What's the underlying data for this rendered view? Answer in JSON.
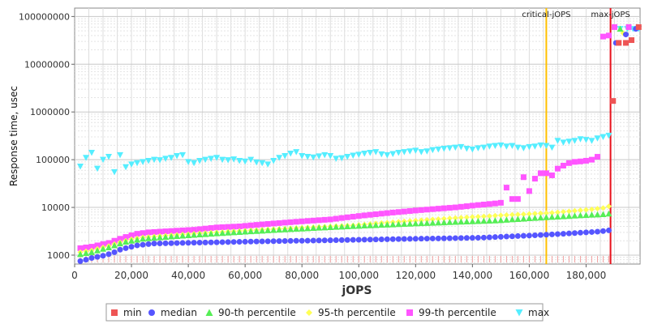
{
  "chart_data": {
    "type": "scatter",
    "xlabel": "jOPS",
    "ylabel": "Response time, usec",
    "xlim": [
      0,
      199000
    ],
    "ylog": true,
    "ylim": [
      650,
      150000000
    ],
    "grid": true,
    "legend_position": "bottom",
    "x_ticks": [
      0,
      20000,
      40000,
      60000,
      80000,
      100000,
      120000,
      140000,
      160000,
      180000
    ],
    "x_tick_labels": [
      "0",
      "20,000",
      "40,000",
      "60,000",
      "80,000",
      "100,000",
      "120,000",
      "140,000",
      "160,000",
      "180,000"
    ],
    "y_ticks": [
      1000,
      10000,
      100000,
      1000000,
      10000000,
      100000000
    ],
    "y_tick_labels": [
      "1000",
      "10000",
      "100000",
      "1000000",
      "10000000",
      "100000000"
    ],
    "markers": [
      {
        "label": "critical-jOPS",
        "x": 166000,
        "color": "#ffc000"
      },
      {
        "label": "max-jOPS",
        "x": 188600,
        "color": "#e8101a"
      }
    ],
    "series": [
      {
        "name": "min",
        "color": "#ee5555",
        "shape": "square",
        "x": [
          189500,
          191500,
          194000,
          196000,
          198500
        ],
        "y": [
          1700000,
          28000000,
          28000000,
          32000000,
          60000000
        ]
      },
      {
        "name": "median",
        "color": "#5555ff",
        "shape": "circle",
        "x": [
          2000,
          4000,
          6000,
          8000,
          10000,
          12000,
          14000,
          16000,
          18000,
          20000,
          22000,
          24000,
          26000,
          28000,
          30000,
          32000,
          34000,
          36000,
          38000,
          40000,
          42000,
          44000,
          46000,
          48000,
          50000,
          52000,
          54000,
          56000,
          58000,
          60000,
          62000,
          64000,
          66000,
          68000,
          70000,
          72000,
          74000,
          76000,
          78000,
          80000,
          82000,
          84000,
          86000,
          88000,
          90000,
          92000,
          94000,
          96000,
          98000,
          100000,
          102000,
          104000,
          106000,
          108000,
          110000,
          112000,
          114000,
          116000,
          118000,
          120000,
          122000,
          124000,
          126000,
          128000,
          130000,
          132000,
          134000,
          136000,
          138000,
          140000,
          142000,
          144000,
          146000,
          148000,
          150000,
          152000,
          154000,
          156000,
          158000,
          160000,
          162000,
          164000,
          166000,
          168000,
          170000,
          172000,
          174000,
          176000,
          178000,
          180000,
          182000,
          184000,
          186000,
          188000,
          190500,
          194000,
          197500
        ],
        "y": [
          750,
          800,
          870,
          920,
          970,
          1050,
          1150,
          1300,
          1400,
          1500,
          1600,
          1650,
          1700,
          1750,
          1760,
          1770,
          1780,
          1790,
          1800,
          1810,
          1820,
          1830,
          1840,
          1850,
          1860,
          1870,
          1880,
          1890,
          1900,
          1910,
          1920,
          1930,
          1940,
          1950,
          1960,
          1970,
          1980,
          1990,
          2000,
          2000,
          2010,
          2020,
          2030,
          2040,
          2050,
          2060,
          2070,
          2080,
          2090,
          2100,
          2110,
          2120,
          2130,
          2140,
          2150,
          2160,
          2170,
          2180,
          2190,
          2200,
          2210,
          2220,
          2230,
          2240,
          2250,
          2260,
          2270,
          2280,
          2290,
          2300,
          2310,
          2330,
          2360,
          2390,
          2420,
          2450,
          2480,
          2510,
          2540,
          2570,
          2600,
          2640,
          2680,
          2720,
          2760,
          2800,
          2850,
          2900,
          2950,
          3000,
          3050,
          3100,
          3200,
          3300,
          28000000,
          42000000,
          55000000
        ]
      },
      {
        "name": "90-th percentile",
        "color": "#55ee55",
        "shape": "triangle",
        "x": [
          2000,
          4000,
          6000,
          8000,
          10000,
          12000,
          14000,
          16000,
          18000,
          20000,
          22000,
          24000,
          26000,
          28000,
          30000,
          32000,
          34000,
          36000,
          38000,
          40000,
          42000,
          44000,
          46000,
          48000,
          50000,
          52000,
          54000,
          56000,
          58000,
          60000,
          62000,
          64000,
          66000,
          68000,
          70000,
          72000,
          74000,
          76000,
          78000,
          80000,
          82000,
          84000,
          86000,
          88000,
          90000,
          92000,
          94000,
          96000,
          98000,
          100000,
          102000,
          104000,
          106000,
          108000,
          110000,
          112000,
          114000,
          116000,
          118000,
          120000,
          122000,
          124000,
          126000,
          128000,
          130000,
          132000,
          134000,
          136000,
          138000,
          140000,
          142000,
          144000,
          146000,
          148000,
          150000,
          152000,
          154000,
          156000,
          158000,
          160000,
          162000,
          164000,
          166000,
          168000,
          170000,
          172000,
          174000,
          176000,
          178000,
          180000,
          182000,
          184000,
          186000,
          188000,
          192000
        ],
        "y": [
          1050,
          1100,
          1150,
          1250,
          1350,
          1450,
          1600,
          1750,
          1900,
          2000,
          2100,
          2200,
          2250,
          2300,
          2350,
          2400,
          2450,
          2500,
          2550,
          2600,
          2650,
          2700,
          2750,
          2800,
          2850,
          2900,
          2950,
          3000,
          3050,
          3100,
          3150,
          3200,
          3250,
          3300,
          3350,
          3400,
          3450,
          3500,
          3550,
          3600,
          3650,
          3700,
          3750,
          3800,
          3850,
          3900,
          3950,
          4000,
          4050,
          4100,
          4150,
          4200,
          4250,
          4300,
          4350,
          4400,
          4450,
          4500,
          4550,
          4600,
          4650,
          4700,
          4750,
          4800,
          4850,
          4900,
          4950,
          5000,
          5050,
          5100,
          5150,
          5200,
          5250,
          5300,
          5400,
          5500,
          5600,
          5700,
          5800,
          5900,
          6000,
          6100,
          6200,
          6300,
          6400,
          6500,
          6600,
          6700,
          6800,
          6900,
          7000,
          7100,
          7200,
          7400,
          55000000
        ]
      },
      {
        "name": "95-th percentile",
        "color": "#ffff55",
        "shape": "diamond",
        "x": [
          2000,
          4000,
          6000,
          8000,
          10000,
          12000,
          14000,
          16000,
          18000,
          20000,
          22000,
          24000,
          26000,
          28000,
          30000,
          32000,
          34000,
          36000,
          38000,
          40000,
          42000,
          44000,
          46000,
          48000,
          50000,
          52000,
          54000,
          56000,
          58000,
          60000,
          62000,
          64000,
          66000,
          68000,
          70000,
          72000,
          74000,
          76000,
          78000,
          80000,
          82000,
          84000,
          86000,
          88000,
          90000,
          92000,
          94000,
          96000,
          98000,
          100000,
          102000,
          104000,
          106000,
          108000,
          110000,
          112000,
          114000,
          116000,
          118000,
          120000,
          122000,
          124000,
          126000,
          128000,
          130000,
          132000,
          134000,
          136000,
          138000,
          140000,
          142000,
          144000,
          146000,
          148000,
          150000,
          152000,
          154000,
          156000,
          158000,
          160000,
          162000,
          164000,
          166000,
          168000,
          170000,
          172000,
          174000,
          176000,
          178000,
          180000,
          182000,
          184000,
          186000,
          188000,
          193000
        ],
        "y": [
          1150,
          1200,
          1250,
          1350,
          1450,
          1550,
          1700,
          1850,
          2000,
          2150,
          2250,
          2350,
          2400,
          2450,
          2500,
          2550,
          2600,
          2650,
          2700,
          2750,
          2800,
          2850,
          2900,
          2950,
          3000,
          3050,
          3100,
          3150,
          3200,
          3250,
          3300,
          3350,
          3400,
          3450,
          3500,
          3550,
          3600,
          3650,
          3700,
          3750,
          3800,
          3850,
          3900,
          3950,
          4000,
          4050,
          4100,
          4150,
          4200,
          4300,
          4400,
          4500,
          4600,
          4700,
          4800,
          4900,
          5000,
          5100,
          5200,
          5300,
          5400,
          5500,
          5600,
          5700,
          5800,
          5900,
          6000,
          6100,
          6200,
          6300,
          6400,
          6500,
          6600,
          6700,
          6800,
          6900,
          7000,
          7100,
          7200,
          7300,
          7400,
          7500,
          7600,
          7700,
          7900,
          8100,
          8300,
          8500,
          8700,
          8900,
          9100,
          9400,
          9700,
          10500,
          45000000
        ]
      },
      {
        "name": "99-th percentile",
        "color": "#ff55ff",
        "shape": "square",
        "x": [
          2000,
          4000,
          6000,
          8000,
          10000,
          12000,
          14000,
          16000,
          18000,
          20000,
          22000,
          24000,
          26000,
          28000,
          30000,
          32000,
          34000,
          36000,
          38000,
          40000,
          42000,
          44000,
          46000,
          48000,
          50000,
          52000,
          54000,
          56000,
          58000,
          60000,
          62000,
          64000,
          66000,
          68000,
          70000,
          72000,
          74000,
          76000,
          78000,
          80000,
          82000,
          84000,
          86000,
          88000,
          90000,
          92000,
          94000,
          96000,
          98000,
          100000,
          102000,
          104000,
          106000,
          108000,
          110000,
          112000,
          114000,
          116000,
          118000,
          120000,
          122000,
          124000,
          126000,
          128000,
          130000,
          132000,
          134000,
          136000,
          138000,
          140000,
          142000,
          144000,
          146000,
          148000,
          150000,
          152000,
          154000,
          156000,
          158000,
          160000,
          162000,
          164000,
          166000,
          168000,
          170000,
          172000,
          174000,
          176000,
          178000,
          180000,
          182000,
          184000,
          186000,
          188000,
          190000,
          195000
        ],
        "y": [
          1400,
          1450,
          1500,
          1600,
          1700,
          1800,
          2000,
          2200,
          2400,
          2600,
          2800,
          2900,
          3000,
          3050,
          3100,
          3150,
          3200,
          3250,
          3300,
          3350,
          3400,
          3500,
          3600,
          3700,
          3800,
          3850,
          3900,
          3950,
          4000,
          4100,
          4200,
          4300,
          4400,
          4500,
          4600,
          4700,
          4800,
          4900,
          5000,
          5100,
          5200,
          5300,
          5400,
          5500,
          5600,
          5800,
          6000,
          6200,
          6400,
          6600,
          6800,
          7000,
          7200,
          7400,
          7600,
          7800,
          8000,
          8200,
          8400,
          8600,
          8800,
          9000,
          9200,
          9400,
          9600,
          9800,
          10000,
          10300,
          10600,
          10900,
          11200,
          11500,
          11800,
          12100,
          12500,
          26000,
          15000,
          15000,
          43000,
          22000,
          40000,
          52000,
          52000,
          47000,
          65000,
          75000,
          85000,
          90000,
          92000,
          95000,
          100000,
          115000,
          38000000,
          40000000,
          60000000,
          60000000
        ]
      },
      {
        "name": "max",
        "color": "#55eeff",
        "shape": "triangle-down",
        "x": [
          2000,
          4000,
          6000,
          8000,
          10000,
          12000,
          14000,
          16000,
          18000,
          20000,
          22000,
          24000,
          26000,
          28000,
          30000,
          32000,
          34000,
          36000,
          38000,
          40000,
          42000,
          44000,
          46000,
          48000,
          50000,
          52000,
          54000,
          56000,
          58000,
          60000,
          62000,
          64000,
          66000,
          68000,
          70000,
          72000,
          74000,
          76000,
          78000,
          80000,
          82000,
          84000,
          86000,
          88000,
          90000,
          92000,
          94000,
          96000,
          98000,
          100000,
          102000,
          104000,
          106000,
          108000,
          110000,
          112000,
          114000,
          116000,
          118000,
          120000,
          122000,
          124000,
          126000,
          128000,
          130000,
          132000,
          134000,
          136000,
          138000,
          140000,
          142000,
          144000,
          146000,
          148000,
          150000,
          152000,
          154000,
          156000,
          158000,
          160000,
          162000,
          164000,
          166000,
          168000,
          170000,
          172000,
          174000,
          176000,
          178000,
          180000,
          182000,
          184000,
          186000,
          188000,
          192000,
          194500,
          196500,
          198500
        ],
        "y": [
          72000,
          110000,
          140000,
          65000,
          100000,
          115000,
          55000,
          125000,
          70000,
          80000,
          85000,
          90000,
          95000,
          100000,
          98000,
          105000,
          110000,
          120000,
          125000,
          90000,
          85000,
          95000,
          100000,
          105000,
          110000,
          100000,
          98000,
          102000,
          95000,
          92000,
          100000,
          88000,
          85000,
          80000,
          95000,
          110000,
          120000,
          135000,
          145000,
          120000,
          115000,
          112000,
          118000,
          125000,
          120000,
          105000,
          108000,
          115000,
          122000,
          128000,
          135000,
          140000,
          145000,
          130000,
          125000,
          132000,
          140000,
          145000,
          150000,
          155000,
          145000,
          150000,
          160000,
          165000,
          170000,
          175000,
          180000,
          185000,
          170000,
          165000,
          175000,
          180000,
          190000,
          195000,
          200000,
          190000,
          195000,
          180000,
          175000,
          185000,
          190000,
          200000,
          195000,
          180000,
          250000,
          230000,
          240000,
          250000,
          270000,
          260000,
          250000,
          280000,
          300000,
          320000,
          55000000,
          55000000,
          55000000,
          55000000
        ]
      }
    ]
  }
}
